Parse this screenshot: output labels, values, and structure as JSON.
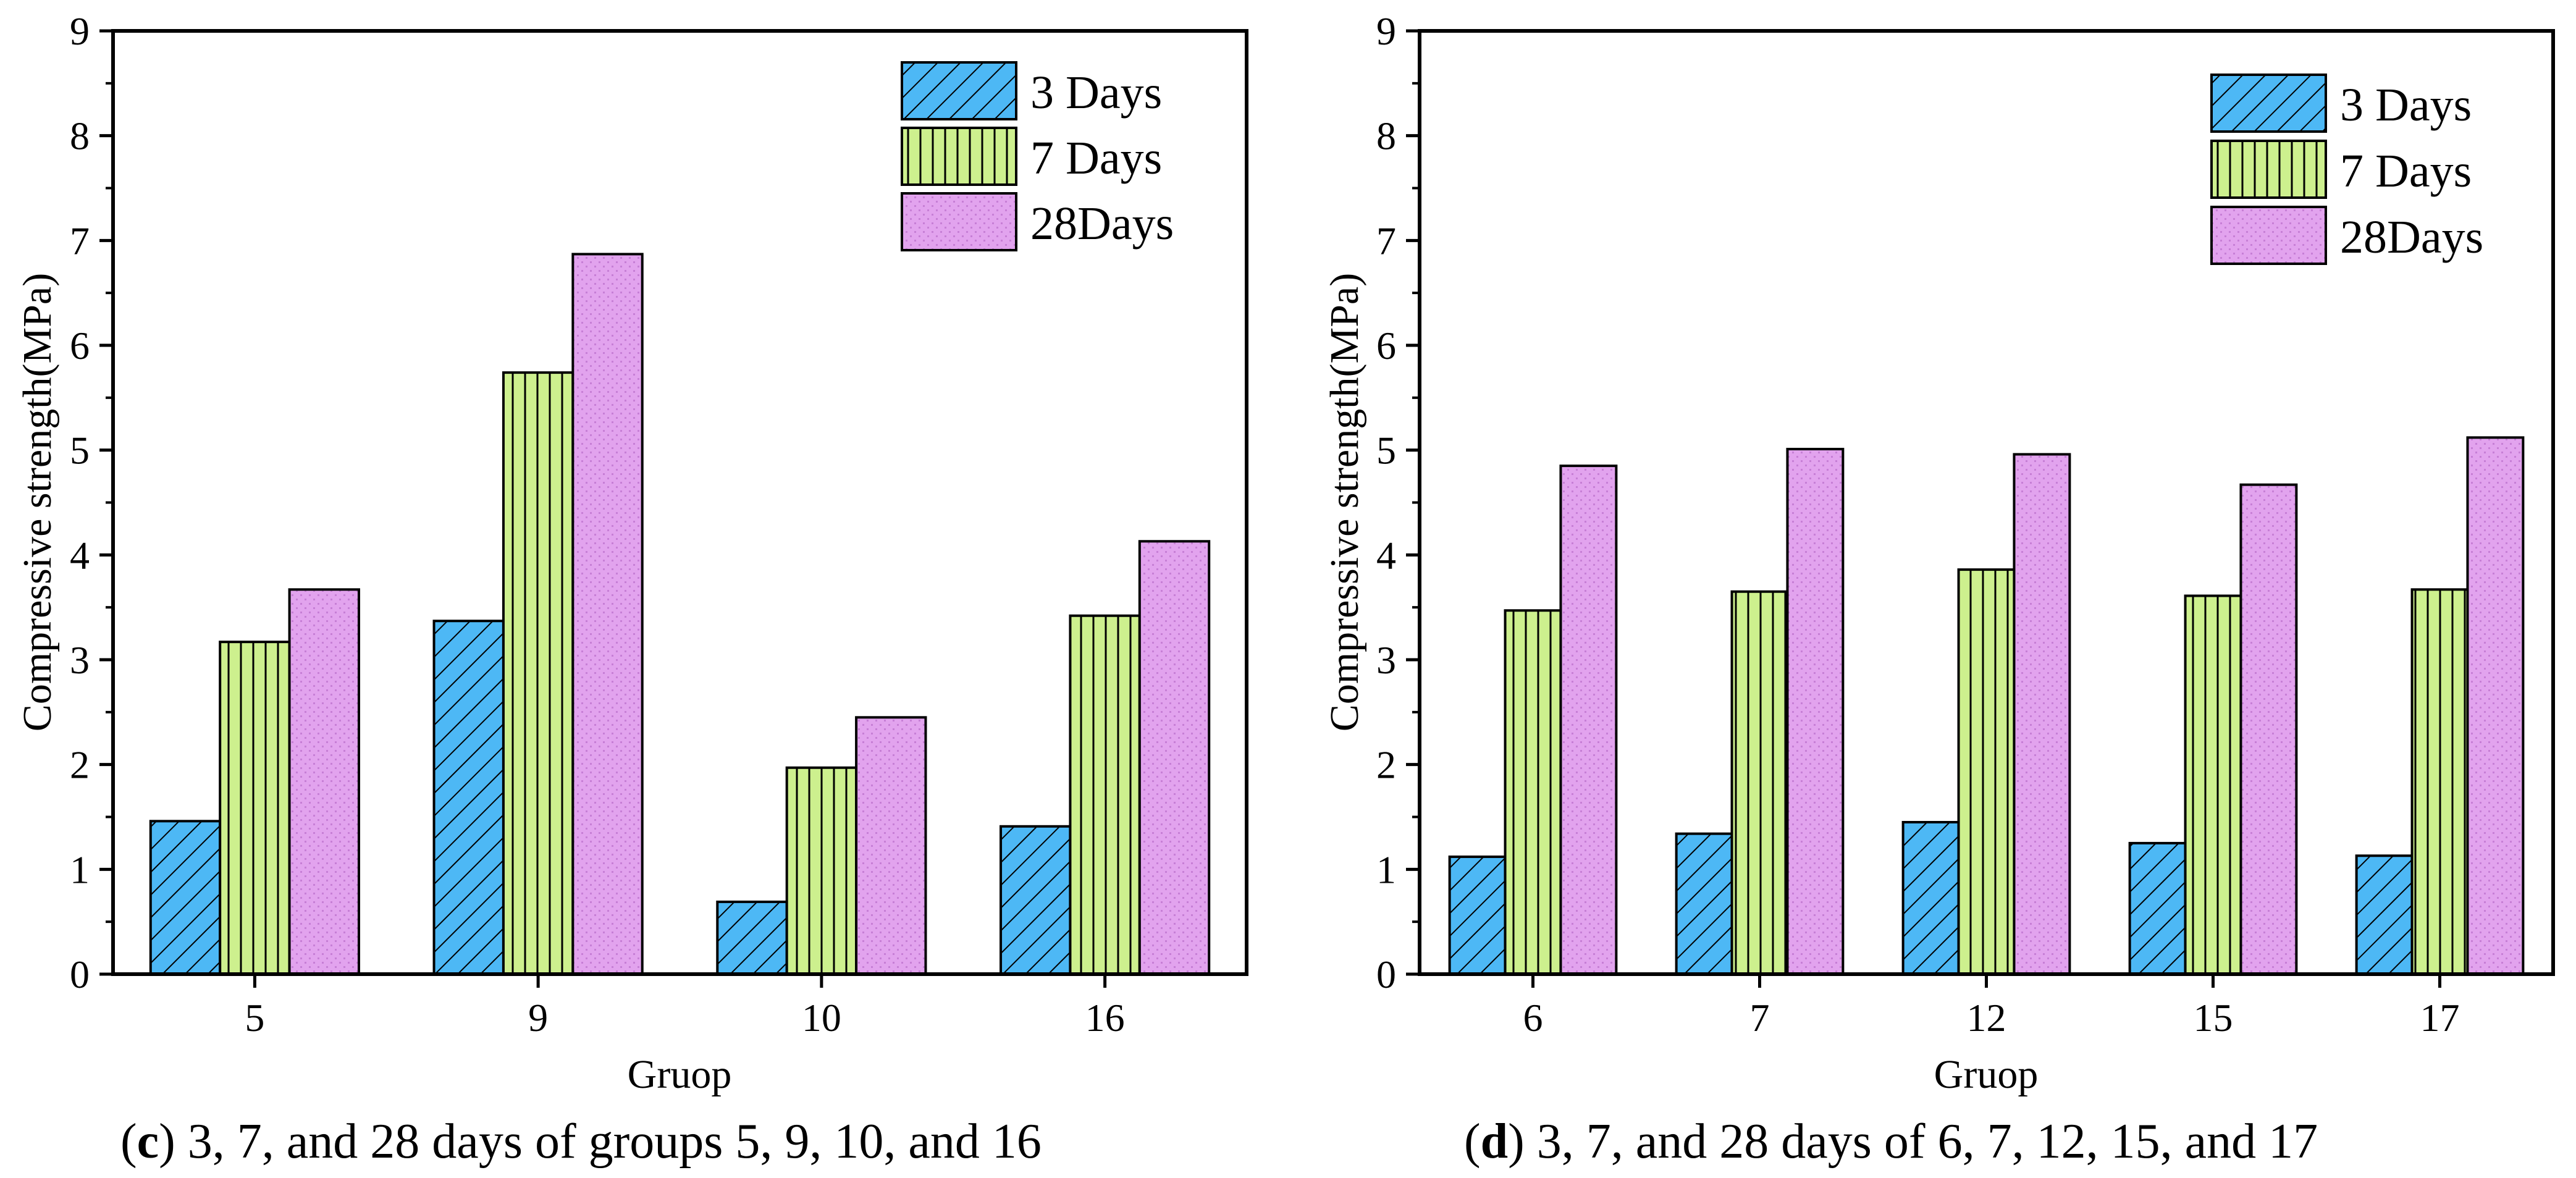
{
  "colors": {
    "day3": "#4db8f5",
    "day7": "#cdf08e",
    "day28": "#e2a3ee",
    "stroke": "#000000"
  },
  "chart_data": [
    {
      "type": "bar",
      "panel": "c",
      "categories": [
        "5",
        "9",
        "10",
        "16"
      ],
      "series": [
        {
          "name": "3 Days",
          "key": "day3",
          "values": [
            1.46,
            3.37,
            0.69,
            1.41
          ]
        },
        {
          "name": "7 Days",
          "key": "day7",
          "values": [
            3.17,
            5.74,
            1.97,
            3.42
          ]
        },
        {
          "name": "28Days",
          "key": "day28",
          "values": [
            3.67,
            6.87,
            2.45,
            4.13
          ]
        }
      ],
      "xlabel": "Gruop",
      "ylabel": "Compressive strength(MPa)",
      "ylim": [
        0,
        9
      ],
      "yticks": [
        "0",
        "1",
        "2",
        "3",
        "4",
        "5",
        "6",
        "7",
        "8",
        "9"
      ],
      "legend_position": "top-right",
      "caption": {
        "letter": "c",
        "text": "3, 7, and 28 days of groups 5, 9, 10, and 16"
      }
    },
    {
      "type": "bar",
      "panel": "d",
      "categories": [
        "6",
        "7",
        "12",
        "15",
        "17"
      ],
      "series": [
        {
          "name": "3 Days",
          "key": "day3",
          "values": [
            1.12,
            1.34,
            1.45,
            1.25,
            1.13
          ]
        },
        {
          "name": "7 Days",
          "key": "day7",
          "values": [
            3.47,
            3.65,
            3.86,
            3.61,
            3.67
          ]
        },
        {
          "name": "28Days",
          "key": "day28",
          "values": [
            4.85,
            5.01,
            4.96,
            4.67,
            5.12
          ]
        }
      ],
      "xlabel": "Gruop",
      "ylabel": "Compressive strength(MPa)",
      "ylim": [
        0,
        9
      ],
      "yticks": [
        "0",
        "1",
        "2",
        "3",
        "4",
        "5",
        "6",
        "7",
        "8",
        "9"
      ],
      "legend_position": "top-right",
      "caption": {
        "letter": "d",
        "text": "3, 7, and 28 days of 6, 7, 12, 15, and 17"
      }
    }
  ]
}
